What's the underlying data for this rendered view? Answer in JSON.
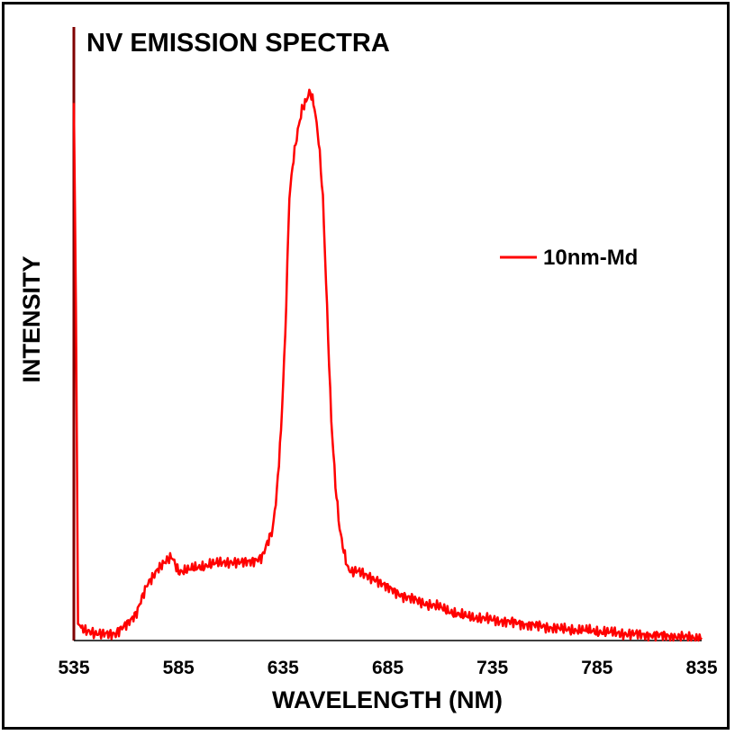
{
  "chart_data": {
    "type": "line",
    "title": "NV EMISSION SPECTRA",
    "xlabel": "WAVELENGTH  (NM)",
    "ylabel": "INTENSITY",
    "xlim": [
      535,
      835
    ],
    "ylim": [
      0,
      1
    ],
    "x_ticks": [
      "535",
      "585",
      "635",
      "685",
      "735",
      "785",
      "835"
    ],
    "y_ticks": [],
    "grid": false,
    "legend_position": "right",
    "colors": {
      "series": "#ff0000",
      "axis_y": "#7f0000",
      "axis_x": "#000000"
    },
    "series": [
      {
        "name": "10nm-Md",
        "x": [
          535,
          536,
          537,
          540,
          545,
          550,
          555,
          560,
          565,
          570,
          575,
          580,
          582,
          585,
          590,
          595,
          600,
          605,
          610,
          615,
          620,
          625,
          628,
          630,
          632,
          634,
          636,
          638,
          640,
          642,
          644,
          646,
          647,
          648,
          649,
          650,
          652,
          654,
          656,
          658,
          660,
          662,
          664,
          666,
          668,
          670,
          675,
          680,
          685,
          690,
          700,
          710,
          720,
          730,
          740,
          750,
          760,
          770,
          780,
          790,
          800,
          810,
          820,
          830,
          835
        ],
        "y": [
          0.97,
          0.6,
          0.03,
          0.02,
          0.01,
          0.015,
          0.01,
          0.03,
          0.05,
          0.1,
          0.13,
          0.145,
          0.15,
          0.125,
          0.128,
          0.132,
          0.138,
          0.14,
          0.142,
          0.14,
          0.144,
          0.15,
          0.18,
          0.2,
          0.27,
          0.38,
          0.55,
          0.8,
          0.87,
          0.92,
          0.96,
          0.975,
          0.985,
          0.99,
          0.975,
          0.96,
          0.9,
          0.8,
          0.6,
          0.4,
          0.28,
          0.2,
          0.16,
          0.13,
          0.125,
          0.128,
          0.115,
          0.11,
          0.095,
          0.085,
          0.07,
          0.06,
          0.045,
          0.04,
          0.035,
          0.03,
          0.025,
          0.02,
          0.018,
          0.015,
          0.012,
          0.01,
          0.008,
          0.005,
          0.005
        ]
      }
    ]
  }
}
